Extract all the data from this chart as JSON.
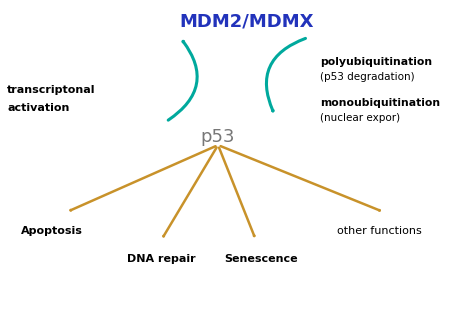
{
  "bg_color": "#ffffff",
  "mdm2_label": "MDM2/MDMX",
  "mdm2_color": "#2233bb",
  "p53_label": "p53",
  "p53_color": "#777777",
  "teal_color": "#00a99d",
  "gold_color": "#c8922a",
  "left_label_line1": "transcriptonal",
  "left_label_line2": "activation",
  "right_label1_bold": "polyubiquitination",
  "right_label1_sub": "(p53 degradation)",
  "right_label2_bold": "monoubiquitination",
  "right_label2_sub": "(nuclear expor)",
  "bottom_labels": [
    "Apoptosis",
    "DNA repair",
    "Senescence",
    "other functions"
  ],
  "bottom_bold": [
    true,
    true,
    true,
    false
  ],
  "figsize": [
    4.74,
    3.12
  ],
  "dpi": 100
}
